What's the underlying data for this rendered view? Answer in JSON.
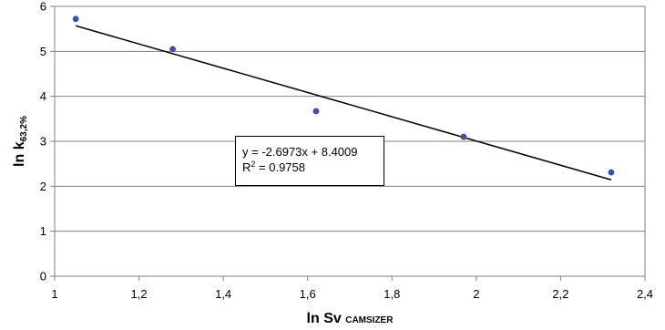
{
  "chart_data": {
    "type": "scatter",
    "x": [
      1.05,
      1.28,
      1.62,
      1.97,
      2.32
    ],
    "y": [
      5.72,
      5.05,
      3.67,
      3.1,
      2.31
    ],
    "xlim": [
      1,
      2.4
    ],
    "ylim": [
      0,
      6
    ],
    "x_tick_labels": [
      "1",
      "1,2",
      "1,4",
      "1,6",
      "1,8",
      "2",
      "2,2",
      "2,4"
    ],
    "y_tick_labels": [
      "0",
      "1",
      "2",
      "3",
      "4",
      "5",
      "6"
    ],
    "xlabel": {
      "main": "ln Sv ",
      "sub": "CAMSIZER"
    },
    "ylabel": {
      "main": "ln k",
      "sub": "63,2%"
    },
    "grid": "horizontal",
    "point_color": "#3f51a3",
    "trendline": {
      "slope": -2.6973,
      "intercept": 8.4009,
      "x_range": [
        1.05,
        2.32
      ],
      "color": "#000000",
      "equation_label": "y = -2.6973x + 8.4009",
      "r2_label_prefix": "R",
      "r2_label_sup": "2",
      "r2_label_value": " = 0.9758"
    }
  }
}
